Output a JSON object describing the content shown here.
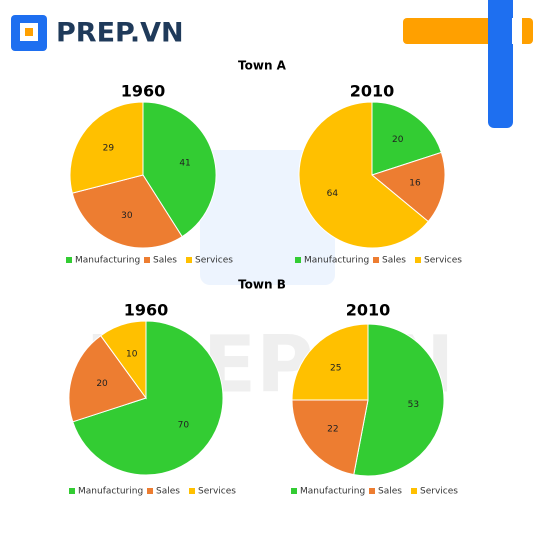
{
  "header": {
    "logo": "PREP.VN",
    "watermark": "PREP.VN"
  },
  "headings": [
    "Town A",
    "Town B"
  ],
  "chart_data": [
    {
      "type": "pie",
      "title": "1960",
      "categories": [
        "Manufacturing",
        "Sales",
        "Services"
      ],
      "colors": [
        "#33cc33",
        "#ed7d31",
        "#ffc000"
      ],
      "values": [
        41,
        30,
        29
      ]
    },
    {
      "type": "pie",
      "title": "2010",
      "categories": [
        "Manufacturing",
        "Sales",
        "Services"
      ],
      "colors": [
        "#33cc33",
        "#ed7d31",
        "#ffc000"
      ],
      "values": [
        20,
        16,
        64
      ]
    },
    {
      "type": "pie",
      "title": "1960",
      "categories": [
        "Manufacturing",
        "Sales",
        "Services"
      ],
      "colors": [
        "#33cc33",
        "#ed7d31",
        "#ffc000"
      ],
      "values": [
        70,
        20,
        10
      ]
    },
    {
      "type": "pie",
      "title": "2010",
      "categories": [
        "Manufacturing",
        "Sales",
        "Services"
      ],
      "colors": [
        "#33cc33",
        "#ed7d31",
        "#ffc000"
      ],
      "values": [
        53,
        22,
        25
      ]
    }
  ]
}
